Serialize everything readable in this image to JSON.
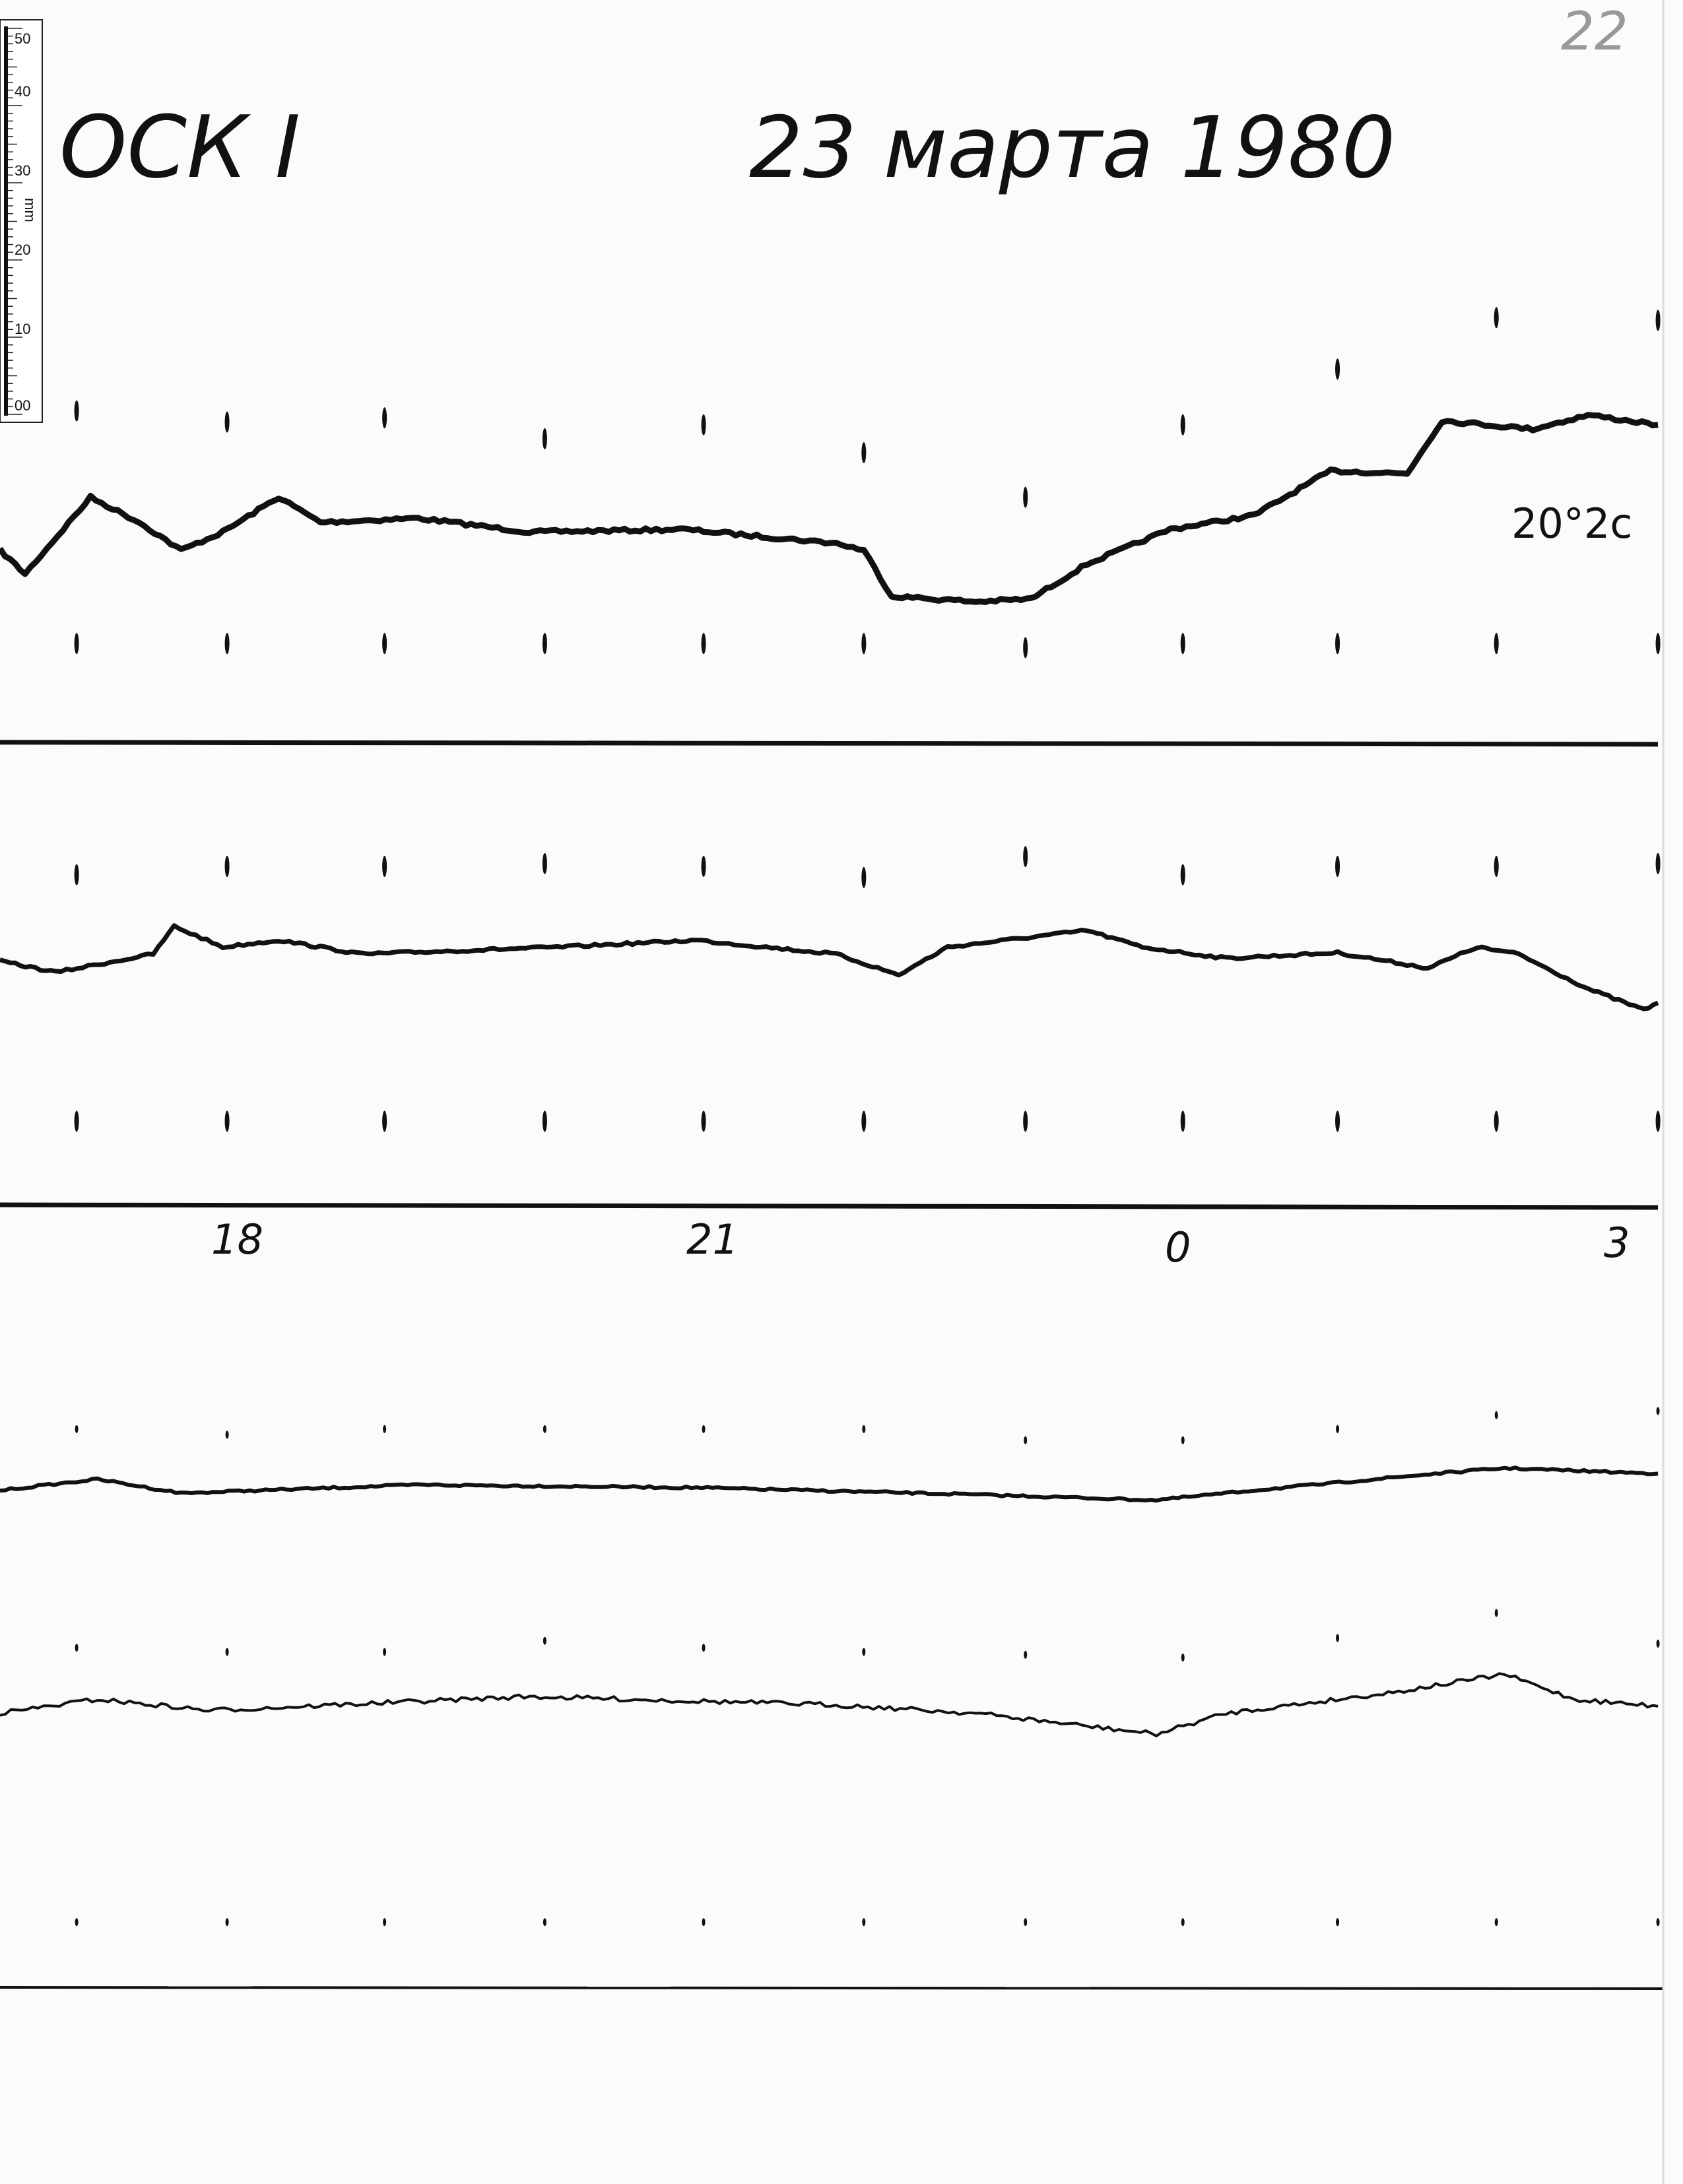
{
  "header": {
    "station": "ОСК I",
    "date": "23 марта 1980",
    "page_number": "22"
  },
  "ruler": {
    "unit": "mm",
    "labels": [
      "50",
      "40",
      "30",
      "20",
      "10",
      "00"
    ]
  },
  "annotations": {
    "scale_note": "20°2c"
  },
  "time_axis": {
    "hour_labels": [
      "18",
      "21",
      "0",
      "3"
    ]
  },
  "colors": {
    "paper": "#fbfbfb",
    "ink": "#111111"
  }
}
